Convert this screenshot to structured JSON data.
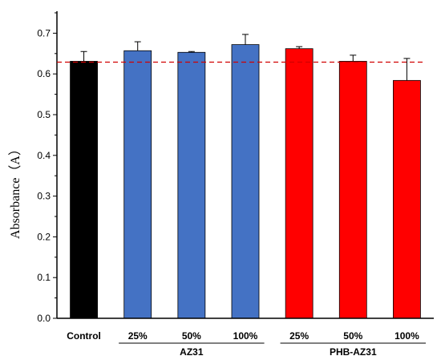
{
  "chart_data": {
    "type": "bar",
    "title": "",
    "xlabel": "",
    "ylabel": "Absorbance（A）",
    "ylim": [
      0,
      0.75
    ],
    "yticks": [
      "0.0",
      "0.1",
      "0.2",
      "0.3",
      "0.4",
      "0.5",
      "0.6",
      "0.7"
    ],
    "categories": [
      "Control",
      "25%",
      "50%",
      "100%",
      "25%",
      "50%",
      "100%"
    ],
    "values": [
      0.631,
      0.657,
      0.653,
      0.672,
      0.662,
      0.631,
      0.584
    ],
    "errors": [
      0.024,
      0.022,
      0.002,
      0.025,
      0.005,
      0.015,
      0.054
    ],
    "colors": [
      "#000000",
      "#4472C4",
      "#4472C4",
      "#4472C4",
      "#FF0000",
      "#FF0000",
      "#FF0000"
    ],
    "groups": [
      {
        "label": "AZ31",
        "start": 1,
        "end": 3
      },
      {
        "label": "PHB-AZ31",
        "start": 4,
        "end": 6
      }
    ],
    "reference_line": {
      "value": 0.629,
      "color": "#D00000",
      "style": "dashed"
    },
    "grid": false,
    "legend": "none"
  }
}
